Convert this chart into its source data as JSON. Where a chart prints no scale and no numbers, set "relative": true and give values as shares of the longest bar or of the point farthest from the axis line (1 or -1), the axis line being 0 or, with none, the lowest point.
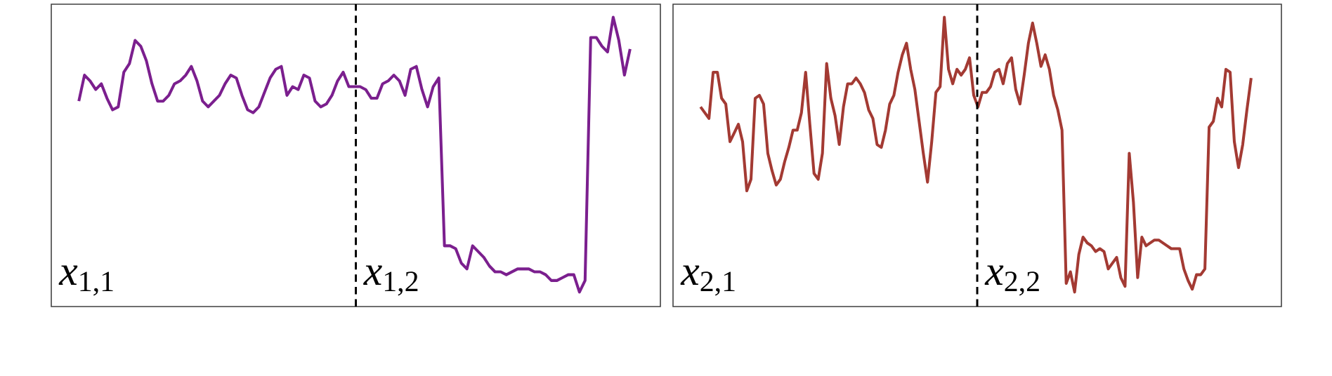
{
  "chart_data": [
    {
      "type": "line",
      "relative": true,
      "categories": [
        null,
        null,
        null,
        null,
        null,
        null,
        null,
        null,
        null,
        null,
        null,
        null,
        null,
        null,
        null,
        null,
        null,
        null,
        null,
        null,
        null,
        null,
        null,
        null,
        null,
        null,
        null,
        null,
        null,
        null,
        null,
        null,
        null,
        null,
        null,
        null,
        null,
        null,
        null,
        null,
        null,
        null,
        null,
        null,
        null,
        null,
        null,
        null,
        null,
        null,
        null,
        null,
        null,
        null,
        null,
        null,
        null,
        null,
        null,
        null,
        null,
        null,
        null,
        null,
        null,
        null,
        null,
        null,
        null,
        null,
        null,
        null,
        null,
        null,
        null,
        null,
        null,
        null,
        null,
        null,
        null,
        null,
        null,
        null,
        null,
        null,
        null,
        null,
        null,
        null,
        null,
        null,
        null,
        null,
        null,
        null,
        null,
        null,
        null
      ],
      "series": [
        {
          "color": "#7b1f8e",
          "values": [
            0.71,
            0.8,
            0.78,
            0.75,
            0.77,
            0.72,
            0.68,
            0.69,
            0.81,
            0.84,
            0.92,
            0.9,
            0.85,
            0.77,
            0.71,
            0.71,
            0.73,
            0.77,
            0.78,
            0.8,
            0.83,
            0.78,
            0.71,
            0.69,
            0.71,
            0.73,
            0.77,
            0.8,
            0.79,
            0.73,
            0.68,
            0.67,
            0.69,
            0.74,
            0.79,
            0.82,
            0.83,
            0.73,
            0.76,
            0.75,
            0.8,
            0.79,
            0.71,
            0.69,
            0.7,
            0.73,
            0.78,
            0.81,
            0.76,
            0.76,
            0.76,
            0.75,
            0.72,
            0.72,
            0.77,
            0.78,
            0.8,
            0.78,
            0.73,
            0.82,
            0.83,
            0.75,
            0.69,
            0.76,
            0.79,
            0.21,
            0.21,
            0.2,
            0.15,
            0.13,
            0.21,
            0.19,
            0.17,
            0.14,
            0.12,
            0.12,
            0.11,
            0.12,
            0.13,
            0.13,
            0.13,
            0.12,
            0.12,
            0.11,
            0.09,
            0.09,
            0.1,
            0.11,
            0.11,
            0.05,
            0.09,
            0.93,
            0.93,
            0.9,
            0.88,
            1.0,
            0.92,
            0.8,
            0.89
          ]
        }
      ],
      "annotations": [
        "*x*$_{1,1}$",
        "*x*$_{1,2}$"
      ]
    },
    {
      "type": "line",
      "relative": true,
      "categories": [
        null,
        null,
        null,
        null,
        null,
        null,
        null,
        null,
        null,
        null,
        null,
        null,
        null,
        null,
        null,
        null,
        null,
        null,
        null,
        null,
        null,
        null,
        null,
        null,
        null,
        null,
        null,
        null,
        null,
        null,
        null,
        null,
        null,
        null,
        null,
        null,
        null,
        null,
        null,
        null,
        null,
        null,
        null,
        null,
        null,
        null,
        null,
        null,
        null,
        null,
        null,
        null,
        null,
        null,
        null,
        null,
        null,
        null,
        null,
        null,
        null,
        null,
        null,
        null,
        null,
        null,
        null,
        null,
        null,
        null,
        null,
        null,
        null,
        null,
        null,
        null,
        null,
        null,
        null,
        null,
        null,
        null,
        null,
        null,
        null,
        null,
        null,
        null,
        null,
        null,
        null,
        null,
        null,
        null,
        null,
        null,
        null,
        null,
        null,
        null,
        null,
        null,
        null,
        null,
        null,
        null,
        null,
        null,
        null,
        null,
        null,
        null,
        null,
        null,
        null,
        null,
        null,
        null,
        null,
        null,
        null,
        null,
        null,
        null,
        null,
        null,
        null,
        null,
        null,
        null,
        null,
        null
      ],
      "series": [
        {
          "color": "#a33a33",
          "values": [
            0.69,
            0.67,
            0.65,
            0.81,
            0.81,
            0.72,
            0.7,
            0.57,
            0.6,
            0.63,
            0.57,
            0.4,
            0.44,
            0.72,
            0.73,
            0.7,
            0.53,
            0.47,
            0.42,
            0.44,
            0.5,
            0.55,
            0.61,
            0.61,
            0.67,
            0.81,
            0.63,
            0.46,
            0.44,
            0.53,
            0.84,
            0.72,
            0.66,
            0.56,
            0.69,
            0.77,
            0.77,
            0.79,
            0.77,
            0.74,
            0.68,
            0.65,
            0.56,
            0.55,
            0.61,
            0.7,
            0.73,
            0.81,
            0.87,
            0.91,
            0.82,
            0.75,
            0.64,
            0.53,
            0.43,
            0.57,
            0.74,
            0.76,
            1.0,
            0.82,
            0.77,
            0.82,
            0.8,
            0.82,
            0.86,
            0.73,
            0.69,
            0.74,
            0.74,
            0.76,
            0.81,
            0.82,
            0.77,
            0.84,
            0.86,
            0.75,
            0.7,
            0.8,
            0.91,
            0.98,
            0.91,
            0.83,
            0.87,
            0.82,
            0.73,
            0.68,
            0.61,
            0.08,
            0.12,
            0.05,
            0.18,
            0.24,
            0.22,
            0.21,
            0.19,
            0.2,
            0.19,
            0.13,
            0.15,
            0.17,
            0.1,
            0.07,
            0.53,
            0.36,
            0.1,
            0.24,
            0.21,
            0.22,
            0.23,
            0.23,
            0.22,
            0.21,
            0.2,
            0.2,
            0.2,
            0.13,
            0.09,
            0.06,
            0.11,
            0.11,
            0.13,
            0.62,
            0.64,
            0.72,
            0.69,
            0.82,
            0.81,
            0.57,
            0.48,
            0.56,
            0.68,
            0.79
          ]
        }
      ],
      "annotations": [
        "*x*$_{2,1}$",
        "*x*$_{2,2}$"
      ]
    }
  ]
}
